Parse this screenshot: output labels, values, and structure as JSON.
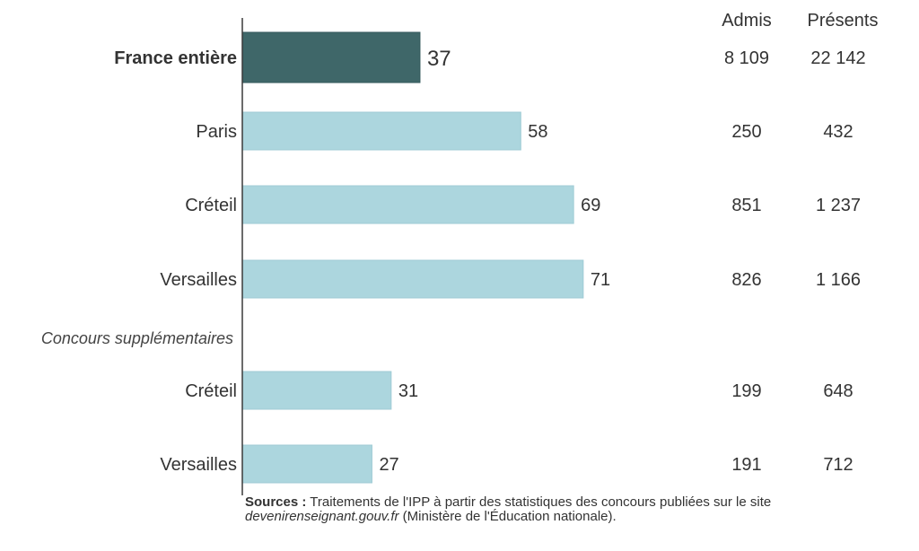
{
  "chart_data": {
    "type": "bar",
    "orientation": "horizontal",
    "title": "",
    "xlabel": "",
    "ylabel": "",
    "xlim": [
      0,
      100
    ],
    "grid": false,
    "legend": "none",
    "colors": {
      "highlight": "#3f6769",
      "default": "#acd6de"
    },
    "rows": [
      {
        "label": "France entière",
        "value": 37,
        "admis": "8 109",
        "presents": "22 142",
        "highlight": true,
        "bold": true
      },
      {
        "label": "Paris",
        "value": 58,
        "admis": "250",
        "presents": "432",
        "highlight": false
      },
      {
        "label": "Créteil",
        "value": 69,
        "admis": "851",
        "presents": "1 237",
        "highlight": false
      },
      {
        "label": "Versailles",
        "value": 71,
        "admis": "826",
        "presents": "1 166",
        "highlight": false
      },
      {
        "section": "Concours supplémentaires"
      },
      {
        "label": "Créteil",
        "value": 31,
        "admis": "199",
        "presents": "648",
        "highlight": false
      },
      {
        "label": "Versailles",
        "value": 27,
        "admis": "191",
        "presents": "712",
        "highlight": false
      }
    ],
    "columns": {
      "admis": "Admis",
      "presents": "Présents"
    }
  },
  "source": {
    "prefix": "Sources :",
    "text1": " Traitements de l'IPP à partir des statistiques des concours publiées sur le site",
    "site": "devenirenseignant.gouv.fr",
    "text2": " (Ministère de l'Éducation nationale)."
  }
}
